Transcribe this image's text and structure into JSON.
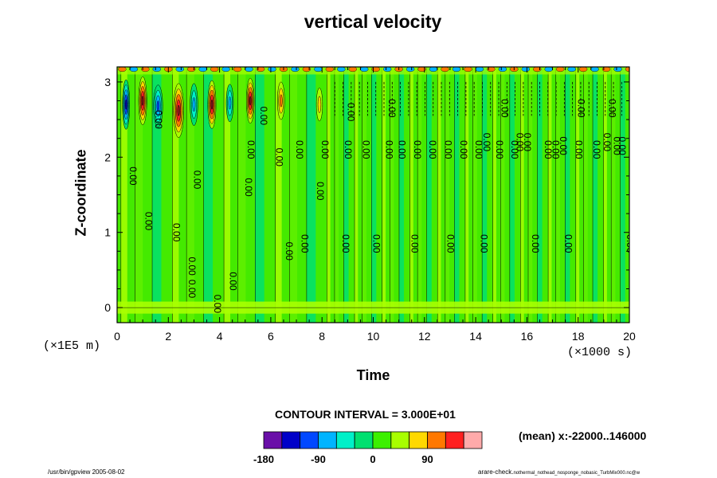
{
  "chart_data": {
    "type": "heatmap",
    "title": "vertical velocity",
    "xlabel": "Time",
    "ylabel": "Z-coordinate",
    "x_scale_note": "(×1000 s)",
    "y_scale_note": "(×1E5 m)",
    "xlim": [
      0,
      20
    ],
    "ylim": [
      -0.2,
      3.2
    ],
    "x_ticks": [
      0,
      2,
      4,
      6,
      8,
      10,
      12,
      14,
      16,
      18,
      20
    ],
    "y_ticks": [
      0,
      1,
      2,
      3
    ],
    "contour_interval": "CONTOUR INTERVAL = 3.000E+01",
    "mean_note": "(mean) x:-22000..146000",
    "contour_label": "0.00",
    "colorbar": {
      "levels": [
        -180,
        -150,
        -120,
        -90,
        -60,
        -30,
        0,
        30,
        60,
        90,
        120,
        150
      ],
      "tick_labels": [
        "-180",
        "-90",
        "0",
        "90"
      ],
      "colors": [
        "#6a0fa8",
        "#0000c8",
        "#0048ff",
        "#00b4ff",
        "#00f0c8",
        "#00e070",
        "#3cf000",
        "#a8ff00",
        "#ffd800",
        "#ff7800",
        "#ff2020",
        "#ffaaaa"
      ]
    }
  },
  "footer": {
    "left": "/usr/bin/gpview 2005-08-02",
    "right": "arare-check.",
    "right_small": "nothermal_nothead_nosponge_nobasic_TurbMix000.nc@w"
  }
}
